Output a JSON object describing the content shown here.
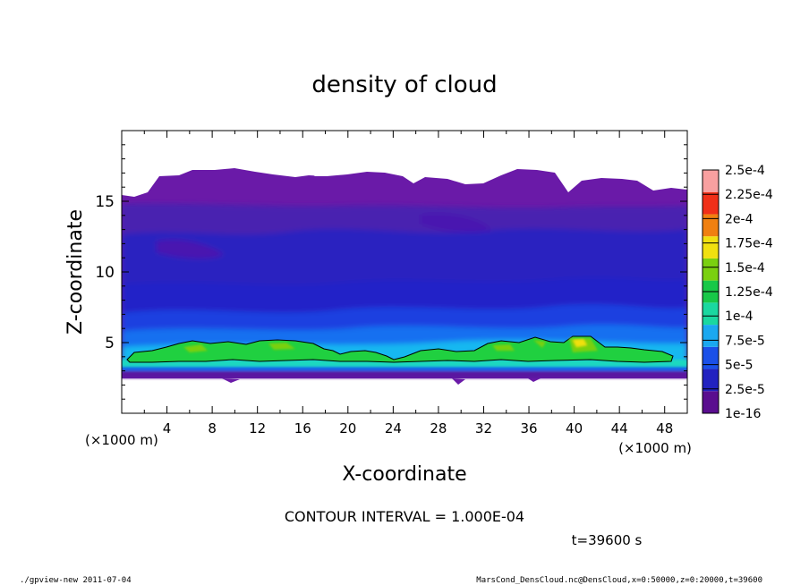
{
  "chart_data": {
    "type": "heatmap",
    "title": "density of cloud",
    "xlabel": "X-coordinate",
    "ylabel": "Z-coordinate",
    "x_unit": "(×1000 m)",
    "y_unit": "(×1000 m)",
    "xlim": [
      0,
      50
    ],
    "ylim": [
      0,
      20
    ],
    "x_ticks": [
      4,
      8,
      12,
      16,
      20,
      24,
      28,
      32,
      36,
      40,
      44,
      48
    ],
    "y_ticks": [
      5,
      10,
      15
    ],
    "colorbar": {
      "labels": [
        "1e-16",
        "2.5e-5",
        "5e-5",
        "7.5e-5",
        "1e-4",
        "1.25e-4",
        "1.5e-4",
        "1.75e-4",
        "2e-4",
        "2.25e-4",
        "2.5e-4"
      ],
      "colors": [
        "#5a0e8f",
        "#2222c0",
        "#1a50e8",
        "#1aa8f0",
        "#1ad8a0",
        "#18c848",
        "#7ad010",
        "#f0e010",
        "#f08010",
        "#f03018",
        "#f8a0a0"
      ]
    },
    "contour_interval_text": "CONTOUR INTERVAL = 1.000E-04",
    "time_label": "t=39600 s",
    "cloud_band": {
      "bottom_z": 2.6,
      "top_z_approx": 17.5,
      "peak_layer_z": [
        3.8,
        5.5
      ],
      "peak_value_approx": 0.000175
    }
  },
  "footer": {
    "left": "./gpview-new  2011-07-04",
    "right": "MarsCond_DensCloud.nc@DensCloud,x=0:50000,z=0:20000,t=39600"
  }
}
